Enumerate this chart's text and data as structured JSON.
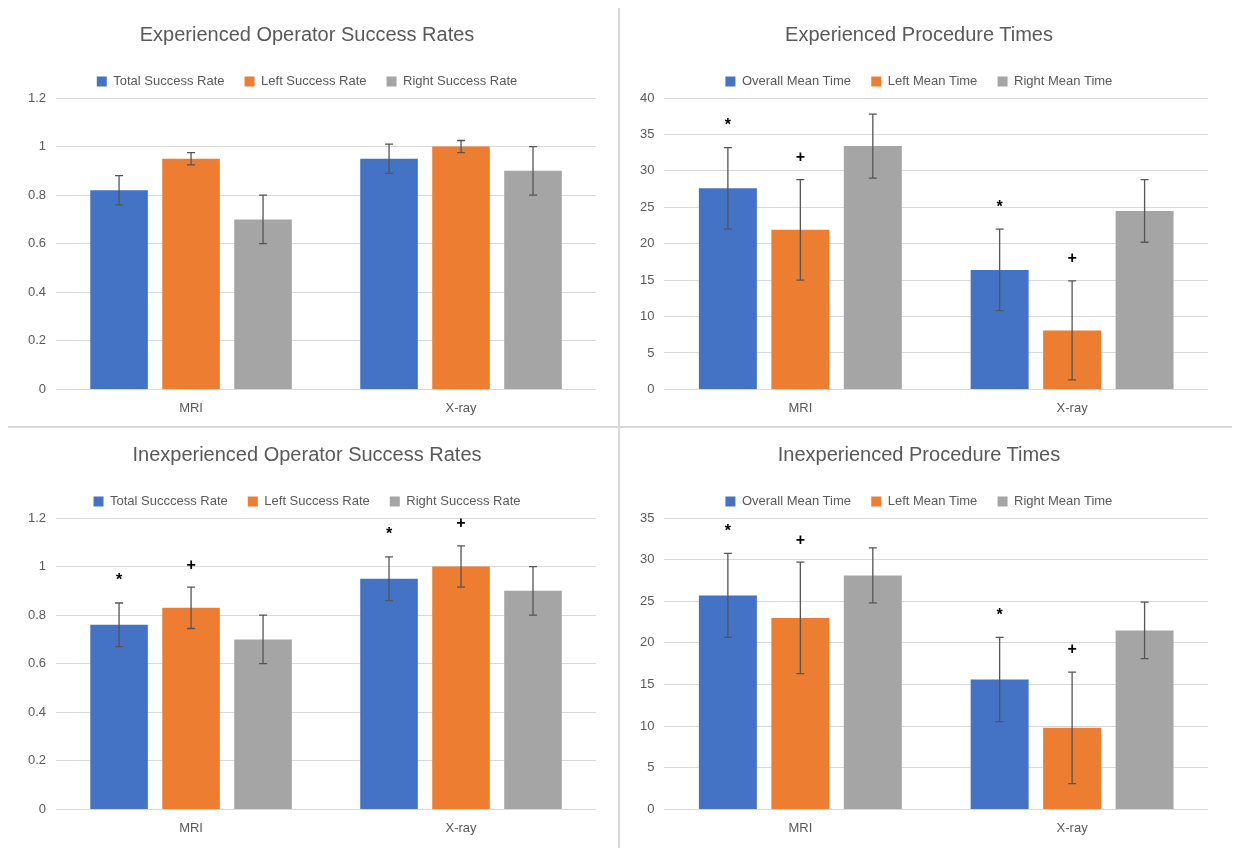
{
  "chart_data": [
    {
      "type": "bar",
      "title": "Experienced Operator Success Rates",
      "categories": [
        "MRI",
        "X-ray"
      ],
      "series": [
        {
          "name": "Total Success Rate",
          "color": "#4472c4",
          "values": [
            0.82,
            0.95
          ],
          "errors": [
            0.06,
            0.06
          ]
        },
        {
          "name": "Left Success Rate",
          "color": "#ed7d31",
          "values": [
            0.95,
            1.0
          ],
          "errors": [
            0.025,
            0.025
          ]
        },
        {
          "name": "Right Success Rate",
          "color": "#a5a5a5",
          "values": [
            0.7,
            0.9
          ],
          "errors": [
            0.1,
            0.1
          ]
        }
      ],
      "ylim": [
        0,
        1.2
      ],
      "yticks": [
        0,
        0.2,
        0.4,
        0.6,
        0.8,
        1,
        1.2
      ],
      "grid": "y",
      "legend": "top"
    },
    {
      "type": "bar",
      "title": "Experienced Procedure Times",
      "categories": [
        "MRI",
        "X-ray"
      ],
      "series": [
        {
          "name": "Overall Mean Time",
          "color": "#4472c4",
          "values": [
            27.6,
            16.4
          ],
          "errors": [
            5.6,
            5.6
          ]
        },
        {
          "name": "Left Mean Time",
          "color": "#ed7d31",
          "values": [
            21.9,
            8.1
          ],
          "errors": [
            6.9,
            6.8
          ]
        },
        {
          "name": "Right Mean Time",
          "color": "#a5a5a5",
          "values": [
            33.4,
            24.5
          ],
          "errors": [
            4.4,
            4.3
          ]
        }
      ],
      "ylim": [
        0,
        40
      ],
      "yticks": [
        0,
        5,
        10,
        15,
        20,
        25,
        30,
        35,
        40
      ],
      "grid": "y",
      "legend": "top",
      "annotations": [
        "*",
        "+",
        "*",
        "+"
      ]
    },
    {
      "type": "bar",
      "title": "Inexperienced Operator Success Rates",
      "categories": [
        "MRI",
        "X-ray"
      ],
      "series": [
        {
          "name": "Total Succcess Rate",
          "color": "#4472c4",
          "values": [
            0.76,
            0.95
          ],
          "errors": [
            0.09,
            0.09
          ]
        },
        {
          "name": "Left Success Rate",
          "color": "#ed7d31",
          "values": [
            0.83,
            1.0
          ],
          "errors": [
            0.085,
            0.085
          ]
        },
        {
          "name": "Right Success Rate",
          "color": "#a5a5a5",
          "values": [
            0.7,
            0.9
          ],
          "errors": [
            0.1,
            0.1
          ]
        }
      ],
      "ylim": [
        0,
        1.2
      ],
      "yticks": [
        0,
        0.2,
        0.4,
        0.6,
        0.8,
        1,
        1.2
      ],
      "grid": "y",
      "legend": "top",
      "annotations": [
        "*",
        "+",
        "*",
        "+"
      ]
    },
    {
      "type": "bar",
      "title": "Inexperienced Procedure Times",
      "categories": [
        "MRI",
        "X-ray"
      ],
      "series": [
        {
          "name": "Overall Mean Time",
          "color": "#4472c4",
          "values": [
            25.7,
            15.6
          ],
          "errors": [
            5.05,
            5.05
          ]
        },
        {
          "name": "Left Mean Time",
          "color": "#ed7d31",
          "values": [
            23.0,
            9.8
          ],
          "errors": [
            6.7,
            6.7
          ]
        },
        {
          "name": "Right Mean Time",
          "color": "#a5a5a5",
          "values": [
            28.1,
            21.5
          ],
          "errors": [
            3.3,
            3.4
          ]
        }
      ],
      "ylim": [
        0,
        35
      ],
      "yticks": [
        0,
        5,
        10,
        15,
        20,
        25,
        30,
        35
      ],
      "grid": "y",
      "legend": "top",
      "annotations": [
        "*",
        "+",
        "*",
        "+"
      ]
    }
  ]
}
